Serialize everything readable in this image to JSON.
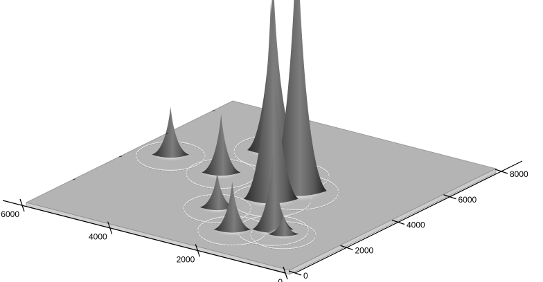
{
  "chart_data": {
    "type": "surface",
    "title": "",
    "xlabel": "",
    "ylabel": "",
    "zlabel": "",
    "x_axis": {
      "ticks": [
        0,
        2000,
        4000,
        6000,
        8000
      ],
      "range": [
        0,
        8000
      ]
    },
    "y_axis": {
      "ticks": [
        0,
        2000,
        4000,
        6000
      ],
      "range": [
        0,
        6000
      ]
    },
    "grid": false,
    "legend": "none",
    "base_color": "#b4b4b4",
    "peaks": [
      {
        "x": 4200,
        "y": 2300,
        "height": 1.0
      },
      {
        "x": 3450,
        "y": 2450,
        "height": 0.76
      },
      {
        "x": 6000,
        "y": 3900,
        "height": 0.64
      },
      {
        "x": 1900,
        "y": 1500,
        "height": 0.28
      },
      {
        "x": 4150,
        "y": 4000,
        "height": 0.22
      },
      {
        "x": 1350,
        "y": 2100,
        "height": 0.18
      },
      {
        "x": 4400,
        "y": 5300,
        "height": 0.18
      },
      {
        "x": 2300,
        "y": 3000,
        "height": 0.13
      },
      {
        "x": 5000,
        "y": 2800,
        "height": 0.11
      },
      {
        "x": 1800,
        "y": 1200,
        "height": 0.07
      }
    ]
  }
}
